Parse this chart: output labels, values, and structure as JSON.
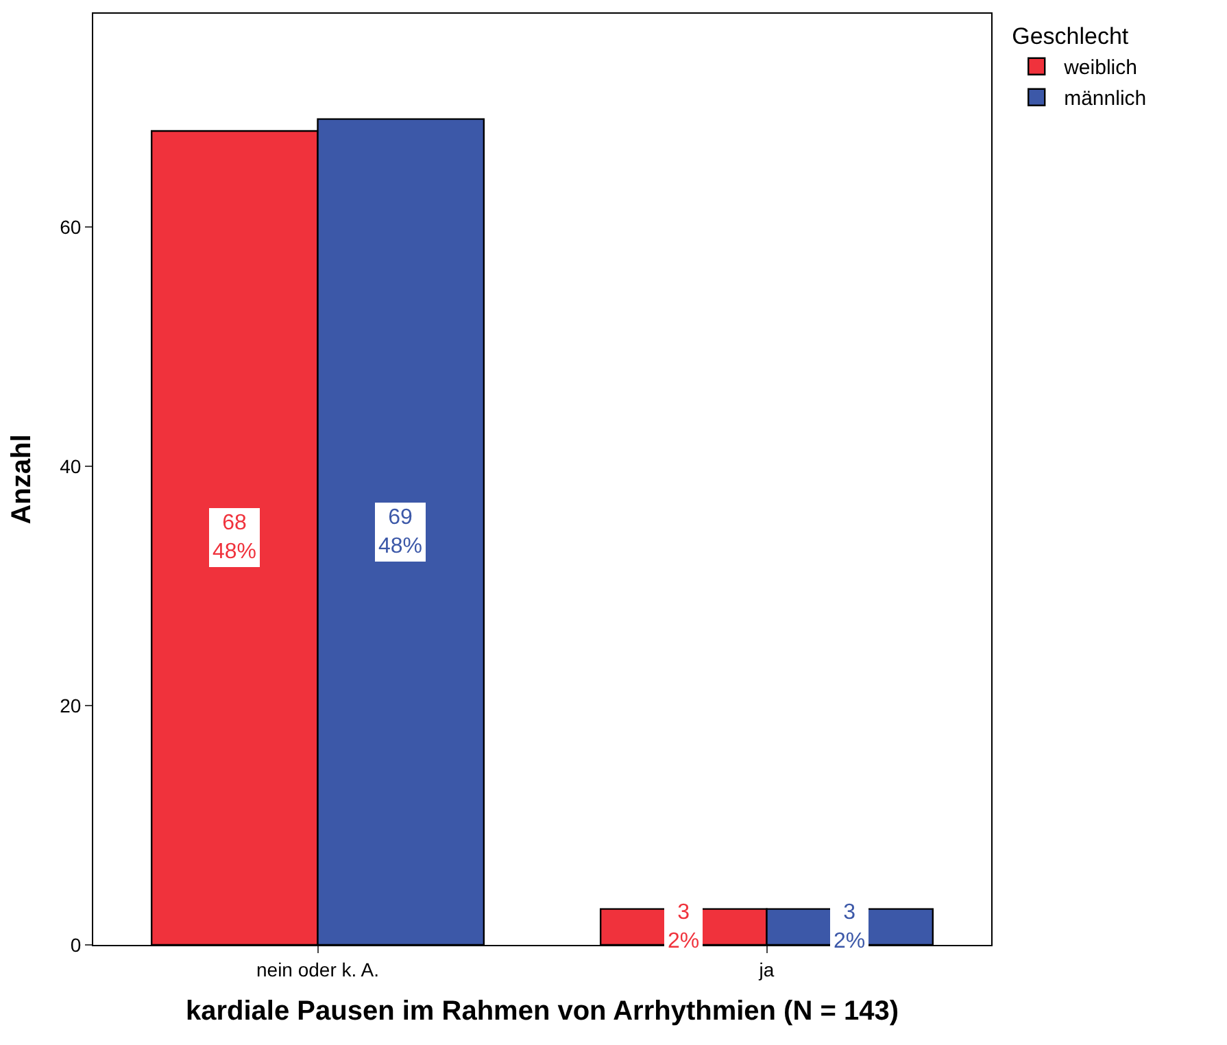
{
  "chart_data": {
    "type": "bar",
    "xlabel": "kardiale Pausen im Rahmen von Arrhythmien (N = 143)",
    "ylabel": "Anzahl",
    "legend_title": "Geschlecht",
    "categories": [
      "nein oder k. A.",
      "ja"
    ],
    "series": [
      {
        "name": "weiblich",
        "color": "#f0323c",
        "values": [
          68,
          3
        ],
        "value_labels": [
          "68\n48%",
          "3\n2%"
        ]
      },
      {
        "name": "männlich",
        "color": "#3c58a8",
        "values": [
          69,
          3
        ],
        "value_labels": [
          "69\n48%",
          "3\n2%"
        ]
      }
    ],
    "ylim": [
      0,
      77.8
    ],
    "yticks": [
      0,
      20,
      40,
      60
    ],
    "legend": "top right"
  }
}
